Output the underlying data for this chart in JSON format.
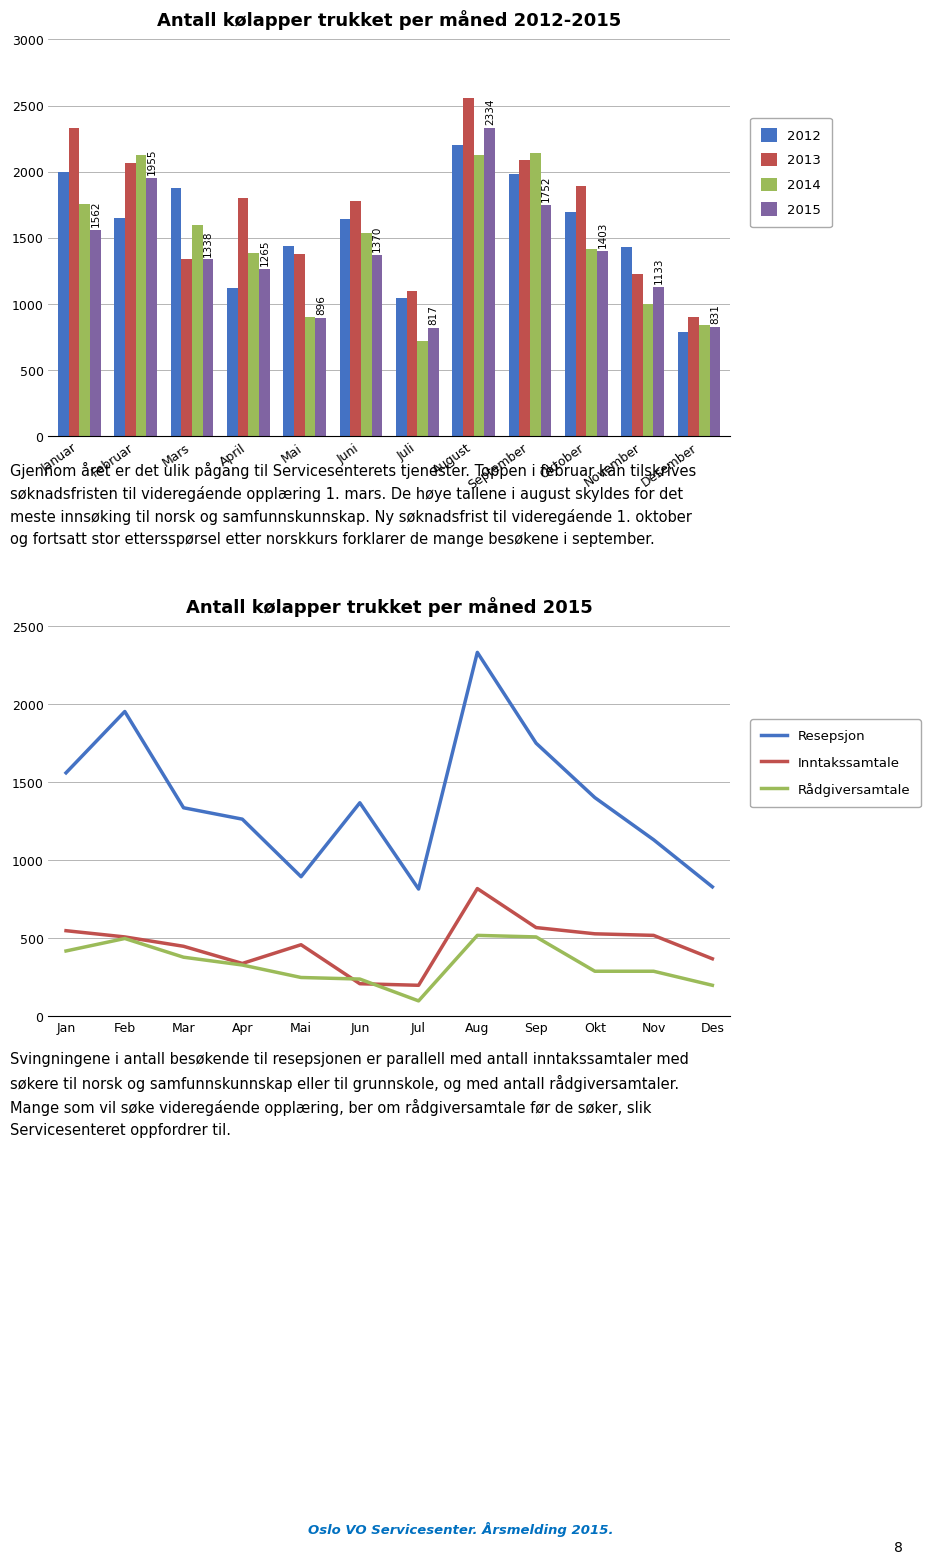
{
  "title_bar": "Antall kølapper trukket per måned 2012-2015",
  "title_line": "Antall kølapper trukket per måned 2015",
  "months_bar": [
    "Januar",
    "Februar",
    "Mars",
    "April",
    "Mai",
    "Juni",
    "Juli",
    "August",
    "September",
    "Oktober",
    "November",
    "Desember"
  ],
  "months_line": [
    "Jan",
    "Feb",
    "Mar",
    "Apr",
    "Mai",
    "Jun",
    "Jul",
    "Aug",
    "Sep",
    "Okt",
    "Nov",
    "Des"
  ],
  "bar_data_2012": [
    2000,
    1650,
    1880,
    1120,
    1440,
    1640,
    1050,
    2200,
    1980,
    1700,
    1430,
    790
  ],
  "bar_data_2013": [
    2330,
    2070,
    1340,
    1800,
    1380,
    1780,
    1100,
    2560,
    2090,
    1890,
    1230,
    900
  ],
  "bar_data_2014": [
    1760,
    2130,
    1600,
    1390,
    900,
    1540,
    720,
    2130,
    2140,
    1420,
    1000,
    840
  ],
  "bar_data_2015": [
    1562,
    1955,
    1338,
    1265,
    896,
    1370,
    817,
    2334,
    1752,
    1403,
    1133,
    831
  ],
  "bar_color_2012": "#4472C4",
  "bar_color_2013": "#C0504D",
  "bar_color_2014": "#9BBB59",
  "bar_color_2015": "#8064A2",
  "line_resepsjon": [
    1562,
    1955,
    1338,
    1265,
    896,
    1370,
    817,
    2334,
    1752,
    1403,
    1133,
    831
  ],
  "line_inntakssamtale": [
    550,
    510,
    450,
    340,
    460,
    210,
    200,
    820,
    570,
    530,
    520,
    370
  ],
  "line_raadgiversamtale": [
    420,
    500,
    380,
    330,
    250,
    240,
    100,
    520,
    510,
    290,
    290,
    200
  ],
  "line_color_resepsjon": "#4472C4",
  "line_color_inntakssamtale": "#C0504D",
  "line_color_raadgiversamtale": "#9BBB59",
  "text1_line1": "Gjennom året er det ulik pågang til Servicesenterets tjenester. Toppen i februar kan tilskrives",
  "text1_line2": "søknadsfristen til videregáende opplæring 1. mars. De høye tallene i august skyldes for det",
  "text1_line3": "meste innsøking til norsk og samfunnskunnskap. Ny søknadsfrist til videregáende 1. oktober",
  "text1_line4": "og fortsatt stor ettersspørsel etter norskkurs forklarer de mange besøkene i september.",
  "text2_line1": "Svingningene i antall besøkende til resepsjonen er parallell med antall inntakssamtaler med",
  "text2_line2": "søkere til norsk og samfunnskunnskap eller til grunnskole, og med antall rådgiversamtaler.",
  "text2_line3": "Mange som vil søke videregáende opplæring, ber om rådgiversamtale før de søker, slik",
  "text2_line4": "Servicesenteret oppfordrer til.",
  "footer": "Oslo VO Servicesenter. Årsmelding 2015.",
  "page_number": "8",
  "ylim_bar": [
    0,
    3000
  ],
  "ylim_line": [
    0,
    2500
  ],
  "yticks_bar": [
    0,
    500,
    1000,
    1500,
    2000,
    2500,
    3000
  ],
  "yticks_line": [
    0,
    500,
    1000,
    1500,
    2000,
    2500
  ],
  "bar_width": 0.19
}
